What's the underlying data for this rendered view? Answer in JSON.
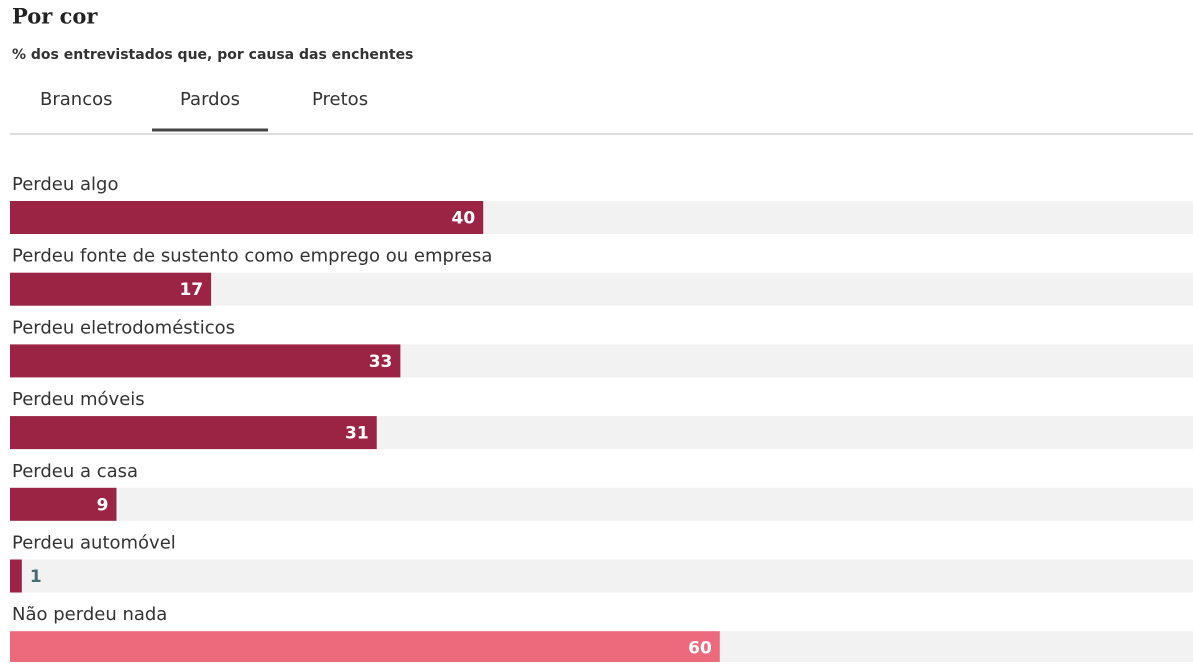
{
  "chart_data": {
    "type": "bar",
    "orientation": "horizontal",
    "title": "Por cor",
    "subtitle": "% dos entrevistados que, por causa das enchentes",
    "tabs": [
      "Brancos",
      "Pardos",
      "Pretos"
    ],
    "active_tab": 1,
    "categories": [
      "Perdeu algo",
      "Perdeu fonte de sustento como emprego ou empresa",
      "Perdeu eletrodomésticos",
      "Perdeu móveis",
      "Perdeu a casa",
      "Perdeu automóvel",
      "Não perdeu nada"
    ],
    "values": [
      40,
      17,
      33,
      31,
      9,
      1,
      60
    ],
    "colors": [
      "#9b2445",
      "#9b2445",
      "#9b2445",
      "#9b2445",
      "#9b2445",
      "#9b2445",
      "#ec6a7c"
    ],
    "xlim": [
      0,
      100
    ]
  }
}
